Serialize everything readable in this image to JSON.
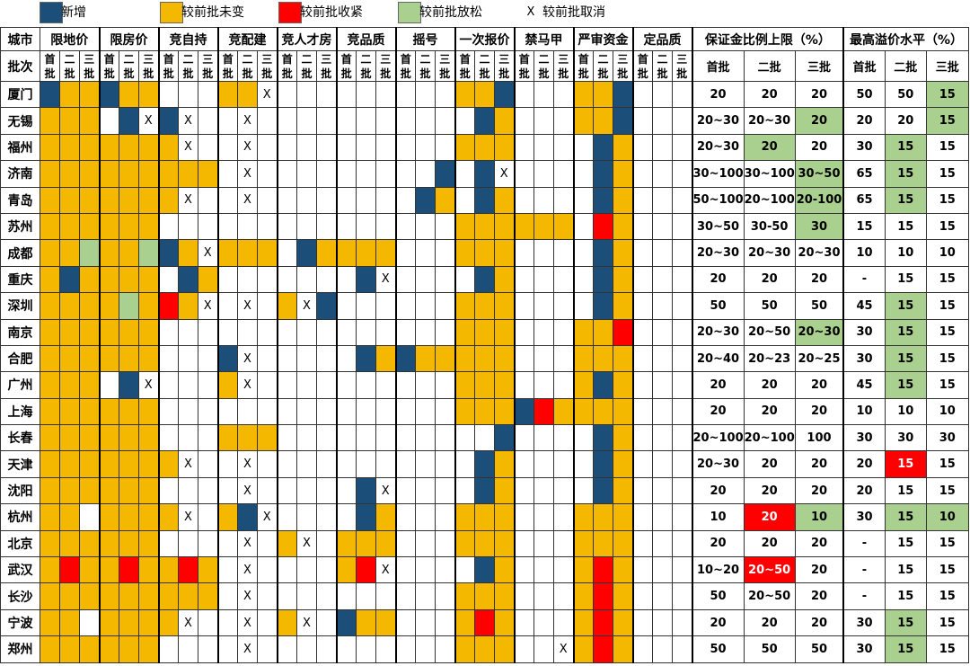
{
  "legend": [
    {
      "key": "new",
      "label": "新增",
      "color": "#1b4f7a"
    },
    {
      "key": "same",
      "label": "较前批未变",
      "color": "#f5b800"
    },
    {
      "key": "tight",
      "label": "较前批收紧",
      "color": "#ff0000"
    },
    {
      "key": "loose",
      "label": "较前批放松",
      "color": "#a9d08e"
    },
    {
      "key": "cancel",
      "symbol": "X",
      "label": "较前批取消"
    }
  ],
  "header": {
    "city_label": "城市",
    "batch_label": "批次",
    "groups": [
      "限地价",
      "限房价",
      "竞自持",
      "竞配建",
      "竞人才房",
      "竞品质",
      "摇号",
      "一次报价",
      "禁马甲",
      "严审资金",
      "定品质"
    ],
    "batches": [
      "首批",
      "二批",
      "三批"
    ],
    "deposit_title": "保证金比例上限（%）",
    "premium_title": "最高溢价水平（%）",
    "deposit_batches": [
      "首批",
      "二批",
      "三批"
    ],
    "premium_batches": [
      "首批",
      "二批",
      "三批"
    ]
  },
  "colors": {
    "N": "#1b4f7a",
    "Y": "#f5b800",
    "R": "#ff0000",
    "G": "#a9d08e"
  },
  "rows": [
    {
      "city": "厦门",
      "cells": [
        "NYY",
        "NYY",
        "",
        "YYX",
        "",
        "",
        "",
        "YYN",
        "",
        "YYN",
        "",
        "YYN"
      ],
      "deposit": [
        [
          "20",
          ""
        ],
        [
          "20",
          ""
        ],
        [
          "20",
          ""
        ]
      ],
      "premium": [
        [
          "50",
          ""
        ],
        [
          "50",
          ""
        ],
        [
          "15",
          "G"
        ]
      ]
    },
    {
      "city": "无锡",
      "cells": [
        "YYY",
        "0NX",
        "NX0",
        "0X0",
        "",
        "",
        "",
        "0NY",
        "",
        "YYN",
        "",
        "YYN"
      ],
      "deposit": [
        [
          "20~30",
          ""
        ],
        [
          "20~30",
          ""
        ],
        [
          "20",
          "G"
        ]
      ],
      "premium": [
        [
          "20",
          ""
        ],
        [
          "20",
          ""
        ],
        [
          "15",
          "G"
        ]
      ]
    },
    {
      "city": "福州",
      "cells": [
        "YYY",
        "YYY",
        "YX0",
        "0X0",
        "",
        "",
        "",
        "YYY",
        "",
        "0NY",
        "",
        "YNY"
      ],
      "deposit": [
        [
          "20~30",
          ""
        ],
        [
          "20",
          "G"
        ],
        [
          "20",
          ""
        ]
      ],
      "premium": [
        [
          "30",
          ""
        ],
        [
          "15",
          "G"
        ],
        [
          "15",
          ""
        ]
      ]
    },
    {
      "city": "济南",
      "cells": [
        "YYY",
        "YYY",
        "YYY",
        "0X0",
        "",
        "",
        "00N",
        "0NX",
        "",
        "0NY",
        "",
        "YNY"
      ],
      "deposit": [
        [
          "30~100",
          ""
        ],
        [
          "30~100",
          ""
        ],
        [
          "30~50",
          "G"
        ]
      ],
      "premium": [
        [
          "65",
          ""
        ],
        [
          "15",
          "G"
        ],
        [
          "15",
          ""
        ]
      ]
    },
    {
      "city": "青岛",
      "cells": [
        "YYY",
        "YYY",
        "YX0",
        "0X0",
        "",
        "",
        "0NY",
        "0NY",
        "",
        "0NY",
        "",
        "YNY"
      ],
      "deposit": [
        [
          "50~100",
          ""
        ],
        [
          "20~100",
          ""
        ],
        [
          "20-100",
          "G"
        ]
      ],
      "premium": [
        [
          "65",
          ""
        ],
        [
          "15",
          "G"
        ],
        [
          "15",
          ""
        ]
      ]
    },
    {
      "city": "苏州",
      "cells": [
        "YYY",
        "YYY",
        "",
        "",
        "",
        "",
        "",
        "YYY",
        "YYY",
        "0RY",
        "",
        "YNY"
      ],
      "deposit": [
        [
          "30~50",
          ""
        ],
        [
          "30-50",
          ""
        ],
        [
          "30",
          "G"
        ]
      ],
      "premium": [
        [
          "15",
          ""
        ],
        [
          "15",
          ""
        ],
        [
          "15",
          ""
        ]
      ]
    },
    {
      "city": "成都",
      "cells": [
        "YYG",
        "YYG",
        "NYX",
        "YYY",
        "0NY",
        "YYY",
        "",
        "YYY",
        "",
        "0NY",
        "",
        "YNY",
        "NYY"
      ],
      "deposit": [
        [
          "20~30",
          ""
        ],
        [
          "20~30",
          ""
        ],
        [
          "20~30",
          ""
        ]
      ],
      "premium": [
        [
          "10",
          ""
        ],
        [
          "10",
          ""
        ],
        [
          "10",
          ""
        ]
      ]
    },
    {
      "city": "重庆",
      "cells": [
        "YNY",
        "YYY",
        "0NY",
        "",
        "",
        "0NX",
        "",
        "0NY",
        "",
        "0NY",
        "",
        "YNY"
      ],
      "deposit": [
        [
          "20",
          ""
        ],
        [
          "20",
          ""
        ],
        [
          "20",
          ""
        ]
      ],
      "premium": [
        [
          "-",
          ""
        ],
        [
          "15",
          ""
        ],
        [
          "15",
          ""
        ]
      ]
    },
    {
      "city": "深圳",
      "cells": [
        "YYY",
        "YGY",
        "RYX",
        "0X0",
        "YXN",
        "",
        "",
        "YYY",
        "",
        "0NY",
        "",
        "YNY"
      ],
      "deposit": [
        [
          "50",
          ""
        ],
        [
          "50",
          ""
        ],
        [
          "50",
          ""
        ]
      ],
      "premium": [
        [
          "45",
          ""
        ],
        [
          "15",
          "G"
        ],
        [
          "15",
          ""
        ]
      ]
    },
    {
      "city": "南京",
      "cells": [
        "YYY",
        "YYY",
        "",
        "",
        "",
        "",
        "",
        "YYY",
        "",
        "YYR",
        "",
        "YNY",
        "0NG"
      ],
      "deposit": [
        [
          "20~30",
          ""
        ],
        [
          "20~50",
          ""
        ],
        [
          "20~30",
          "G"
        ]
      ],
      "premium": [
        [
          "30",
          ""
        ],
        [
          "15",
          "G"
        ],
        [
          "15",
          ""
        ]
      ]
    },
    {
      "city": "合肥",
      "cells": [
        "YYY",
        "YYY",
        "",
        "NX0",
        "",
        "0NY",
        "NYY",
        "YYY",
        "",
        "YYY",
        "",
        "YNY",
        "0NY"
      ],
      "deposit": [
        [
          "20~40",
          ""
        ],
        [
          "20~23",
          ""
        ],
        [
          "20~25",
          ""
        ]
      ],
      "premium": [
        [
          "30",
          ""
        ],
        [
          "15",
          "G"
        ],
        [
          "15",
          ""
        ]
      ]
    },
    {
      "city": "广州",
      "cells": [
        "YYY",
        "0NX",
        "",
        "YX0",
        "",
        "",
        "",
        "YYY",
        "",
        "YNY",
        "",
        "YNY",
        "0NY"
      ],
      "deposit": [
        [
          "20",
          ""
        ],
        [
          "20",
          ""
        ],
        [
          "20",
          ""
        ]
      ],
      "premium": [
        [
          "45",
          ""
        ],
        [
          "15",
          "G"
        ],
        [
          "15",
          ""
        ]
      ]
    },
    {
      "city": "上海",
      "cells": [
        "YYY",
        "YYY",
        "",
        "",
        "",
        "",
        "",
        "YYY",
        "NRY",
        "YYY",
        "",
        "YNY"
      ],
      "deposit": [
        [
          "20",
          ""
        ],
        [
          "20",
          ""
        ],
        [
          "20",
          ""
        ]
      ],
      "premium": [
        [
          "10",
          ""
        ],
        [
          "10",
          ""
        ],
        [
          "10",
          ""
        ]
      ]
    },
    {
      "city": "长春",
      "cells": [
        "YYY",
        "YYY",
        "",
        "YYY",
        "",
        "",
        "",
        "00N",
        "",
        "0NY",
        "",
        "YNY"
      ],
      "deposit": [
        [
          "20~100",
          ""
        ],
        [
          "20~100",
          ""
        ],
        [
          "100",
          ""
        ]
      ],
      "premium": [
        [
          "30",
          ""
        ],
        [
          "30",
          ""
        ],
        [
          "30",
          ""
        ]
      ]
    },
    {
      "city": "天津",
      "cells": [
        "YYY",
        "YYY",
        "YX0",
        "0X0",
        "",
        "",
        "",
        "0NY",
        "",
        "0NY",
        "",
        "YNY"
      ],
      "deposit": [
        [
          "20~30",
          ""
        ],
        [
          "20",
          ""
        ],
        [
          "20",
          ""
        ]
      ],
      "premium": [
        [
          "20",
          ""
        ],
        [
          "15",
          "R"
        ],
        [
          "15",
          ""
        ]
      ]
    },
    {
      "city": "沈阳",
      "cells": [
        "YYY",
        "YYY",
        "",
        "0X0",
        "",
        "0NX",
        "",
        "0NY",
        "",
        "0NY",
        "",
        "YNY",
        "0NY"
      ],
      "deposit": [
        [
          "20",
          ""
        ],
        [
          "20",
          ""
        ],
        [
          "20",
          ""
        ]
      ],
      "premium": [
        [
          "20",
          ""
        ],
        [
          "15",
          ""
        ],
        [
          "15",
          ""
        ]
      ]
    },
    {
      "city": "杭州",
      "cells": [
        "YY0",
        "YYY",
        "YX0",
        "YNX",
        "",
        "0NY",
        "",
        "YYY",
        "",
        "YYY",
        "",
        "YNG",
        "YYN"
      ],
      "deposit": [
        [
          "10",
          ""
        ],
        [
          "20",
          "R"
        ],
        [
          "10",
          "G"
        ]
      ],
      "premium": [
        [
          "30",
          ""
        ],
        [
          "15",
          "G"
        ],
        [
          "10",
          "G"
        ]
      ]
    },
    {
      "city": "北京",
      "cells": [
        "YYY",
        "YYY",
        "",
        "0X0",
        "YX0",
        "YYY",
        "",
        "YYY",
        "",
        "YYY",
        "",
        "YYY"
      ],
      "deposit": [
        [
          "20",
          ""
        ],
        [
          "20",
          ""
        ],
        [
          "20",
          ""
        ]
      ],
      "premium": [
        [
          "-",
          ""
        ],
        [
          "15",
          ""
        ],
        [
          "15",
          ""
        ]
      ]
    },
    {
      "city": "武汉",
      "cells": [
        "YRY",
        "YRY",
        "YRY",
        "0X0",
        "",
        "YRX",
        "",
        "0NY",
        "",
        "YRY",
        "",
        "YRY"
      ],
      "deposit": [
        [
          "10~20",
          ""
        ],
        [
          "20~50",
          "R"
        ],
        [
          "20",
          ""
        ]
      ],
      "premium": [
        [
          "-",
          ""
        ],
        [
          "15",
          ""
        ],
        [
          "15",
          ""
        ]
      ]
    },
    {
      "city": "长沙",
      "cells": [
        "YYY",
        "YYY",
        "YYY",
        "0X0",
        "",
        "",
        "",
        "YYY",
        "",
        "YRY",
        "",
        "YRY"
      ],
      "deposit": [
        [
          "50",
          ""
        ],
        [
          "20~50",
          ""
        ],
        [
          "20",
          ""
        ]
      ],
      "premium": [
        [
          "-",
          ""
        ],
        [
          "15",
          ""
        ],
        [
          "15",
          ""
        ]
      ]
    },
    {
      "city": "宁波",
      "cells": [
        "YY0",
        "YYY",
        "YX0",
        "0X0",
        "YX0",
        "NYY",
        "",
        "YRY",
        "",
        "YRY",
        "",
        "YRY"
      ],
      "deposit": [
        [
          "20",
          ""
        ],
        [
          "20",
          ""
        ],
        [
          "20",
          ""
        ]
      ],
      "premium": [
        [
          "30",
          ""
        ],
        [
          "15",
          "G"
        ],
        [
          "15",
          ""
        ]
      ]
    },
    {
      "city": "郑州",
      "cells": [
        "YYY",
        "YYY",
        "",
        "0X0",
        "",
        "",
        "",
        "YYY",
        "00X",
        "YRY",
        "",
        "YRY"
      ],
      "deposit": [
        [
          "50",
          ""
        ],
        [
          "50",
          ""
        ],
        [
          "50",
          ""
        ]
      ],
      "premium": [
        [
          "30",
          ""
        ],
        [
          "15",
          "G"
        ],
        [
          "15",
          ""
        ]
      ]
    }
  ]
}
